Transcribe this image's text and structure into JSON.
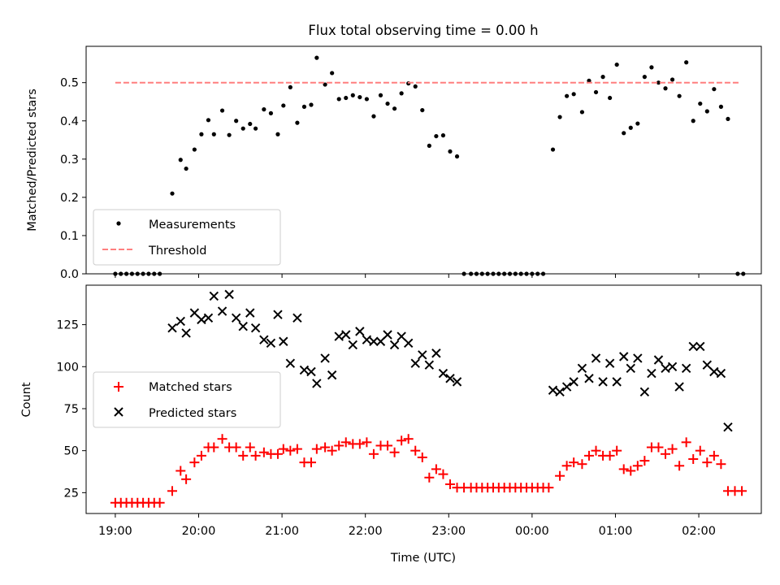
{
  "figure": {
    "title": "Flux total observing time = 0.00 h"
  },
  "chart_data": [
    {
      "type": "scatter",
      "panel": "top",
      "xlabel": "",
      "ylabel": "Matched/Predicted stars",
      "xlim": [
        "18:39",
        "02:45"
      ],
      "ylim": [
        0,
        0.595
      ],
      "x_ticks": [
        "19:00",
        "20:00",
        "21:00",
        "22:00",
        "23:00",
        "00:00",
        "01:00",
        "02:00"
      ],
      "y_ticks": [
        "0.0",
        "0.1",
        "0.2",
        "0.3",
        "0.4",
        "0.5"
      ],
      "legend_position": "lower-left",
      "series": [
        {
          "name": "Measurements",
          "marker": "dot",
          "color": "#000000",
          "points": [
            [
              "19:00",
              0
            ],
            [
              "19:04",
              0
            ],
            [
              "19:08",
              0
            ],
            [
              "19:12",
              0
            ],
            [
              "19:16",
              0
            ],
            [
              "19:20",
              0
            ],
            [
              "19:24",
              0
            ],
            [
              "19:28",
              0
            ],
            [
              "19:32",
              0
            ],
            [
              "19:41",
              0.21
            ],
            [
              "19:47",
              0.298
            ],
            [
              "19:51",
              0.275
            ],
            [
              "19:57",
              0.325
            ],
            [
              "20:02",
              0.365
            ],
            [
              "20:07",
              0.402
            ],
            [
              "20:11",
              0.365
            ],
            [
              "20:17",
              0.427
            ],
            [
              "20:22",
              0.363
            ],
            [
              "20:27",
              0.4
            ],
            [
              "20:32",
              0.38
            ],
            [
              "20:37",
              0.392
            ],
            [
              "20:41",
              0.38
            ],
            [
              "20:47",
              0.43
            ],
            [
              "20:52",
              0.42
            ],
            [
              "20:57",
              0.365
            ],
            [
              "21:01",
              0.44
            ],
            [
              "21:06",
              0.488
            ],
            [
              "21:11",
              0.395
            ],
            [
              "21:16",
              0.437
            ],
            [
              "21:21",
              0.442
            ],
            [
              "21:25",
              0.565
            ],
            [
              "21:31",
              0.495
            ],
            [
              "21:36",
              0.525
            ],
            [
              "21:41",
              0.457
            ],
            [
              "21:46",
              0.46
            ],
            [
              "21:51",
              0.467
            ],
            [
              "21:56",
              0.462
            ],
            [
              "22:01",
              0.457
            ],
            [
              "22:06",
              0.412
            ],
            [
              "22:11",
              0.467
            ],
            [
              "22:16",
              0.445
            ],
            [
              "22:21",
              0.432
            ],
            [
              "22:26",
              0.472
            ],
            [
              "22:31",
              0.498
            ],
            [
              "22:36",
              0.49
            ],
            [
              "22:41",
              0.428
            ],
            [
              "22:46",
              0.335
            ],
            [
              "22:51",
              0.36
            ],
            [
              "22:56",
              0.362
            ],
            [
              "23:01",
              0.32
            ],
            [
              "23:06",
              0.307
            ],
            [
              "23:11",
              0
            ],
            [
              "23:16",
              0
            ],
            [
              "23:20",
              0
            ],
            [
              "23:24",
              0
            ],
            [
              "23:28",
              0
            ],
            [
              "23:32",
              0
            ],
            [
              "23:36",
              0
            ],
            [
              "23:40",
              0
            ],
            [
              "23:44",
              0
            ],
            [
              "23:48",
              0
            ],
            [
              "23:52",
              0
            ],
            [
              "23:56",
              0
            ],
            [
              "00:00",
              0
            ],
            [
              "00:04",
              0
            ],
            [
              "00:08",
              0
            ],
            [
              "00:15",
              0.325
            ],
            [
              "00:20",
              0.41
            ],
            [
              "00:25",
              0.465
            ],
            [
              "00:30",
              0.47
            ],
            [
              "00:36",
              0.423
            ],
            [
              "00:41",
              0.505
            ],
            [
              "00:46",
              0.475
            ],
            [
              "00:51",
              0.515
            ],
            [
              "00:56",
              0.46
            ],
            [
              "01:01",
              0.547
            ],
            [
              "01:06",
              0.368
            ],
            [
              "01:11",
              0.382
            ],
            [
              "01:16",
              0.393
            ],
            [
              "01:21",
              0.515
            ],
            [
              "01:26",
              0.54
            ],
            [
              "01:31",
              0.5
            ],
            [
              "01:36",
              0.485
            ],
            [
              "01:41",
              0.508
            ],
            [
              "01:46",
              0.465
            ],
            [
              "01:51",
              0.553
            ],
            [
              "01:56",
              0.4
            ],
            [
              "02:01",
              0.445
            ],
            [
              "02:06",
              0.425
            ],
            [
              "02:11",
              0.483
            ],
            [
              "02:16",
              0.437
            ],
            [
              "02:21",
              0.405
            ],
            [
              "02:28",
              0
            ],
            [
              "02:32",
              0
            ]
          ]
        },
        {
          "name": "Threshold",
          "marker": "dashed-line",
          "color": "#ff7f7f",
          "points": [
            [
              "19:00",
              0.5
            ],
            [
              "02:30",
              0.5
            ]
          ]
        }
      ]
    },
    {
      "type": "scatter",
      "panel": "bottom",
      "xlabel": "Time (UTC)",
      "ylabel": "Count",
      "xlim": [
        "18:39",
        "02:45"
      ],
      "ylim": [
        12.6,
        148.5
      ],
      "x_ticks": [
        "19:00",
        "20:00",
        "21:00",
        "22:00",
        "23:00",
        "00:00",
        "01:00",
        "02:00"
      ],
      "y_ticks": [
        "25",
        "50",
        "75",
        "100",
        "125"
      ],
      "legend_position": "center-left",
      "series": [
        {
          "name": "Matched stars",
          "marker": "plus",
          "color": "#ff0000",
          "points": [
            [
              "19:00",
              19
            ],
            [
              "19:04",
              19
            ],
            [
              "19:08",
              19
            ],
            [
              "19:12",
              19
            ],
            [
              "19:16",
              19
            ],
            [
              "19:20",
              19
            ],
            [
              "19:24",
              19
            ],
            [
              "19:28",
              19
            ],
            [
              "19:32",
              19
            ],
            [
              "19:41",
              26
            ],
            [
              "19:47",
              38
            ],
            [
              "19:51",
              33
            ],
            [
              "19:57",
              43
            ],
            [
              "20:02",
              47
            ],
            [
              "20:07",
              52
            ],
            [
              "20:11",
              52
            ],
            [
              "20:17",
              57
            ],
            [
              "20:22",
              52
            ],
            [
              "20:27",
              52
            ],
            [
              "20:32",
              47
            ],
            [
              "20:37",
              52
            ],
            [
              "20:41",
              47
            ],
            [
              "20:47",
              49
            ],
            [
              "20:52",
              48
            ],
            [
              "20:57",
              48
            ],
            [
              "21:01",
              51
            ],
            [
              "21:06",
              50
            ],
            [
              "21:11",
              51
            ],
            [
              "21:16",
              43
            ],
            [
              "21:21",
              43
            ],
            [
              "21:25",
              51
            ],
            [
              "21:31",
              52
            ],
            [
              "21:36",
              50
            ],
            [
              "21:41",
              53
            ],
            [
              "21:46",
              55
            ],
            [
              "21:51",
              54
            ],
            [
              "21:56",
              54
            ],
            [
              "22:01",
              55
            ],
            [
              "22:06",
              48
            ],
            [
              "22:11",
              53
            ],
            [
              "22:16",
              53
            ],
            [
              "22:21",
              49
            ],
            [
              "22:26",
              56
            ],
            [
              "22:31",
              57
            ],
            [
              "22:36",
              50
            ],
            [
              "22:41",
              46
            ],
            [
              "22:46",
              34
            ],
            [
              "22:51",
              39
            ],
            [
              "22:56",
              36
            ],
            [
              "23:01",
              30
            ],
            [
              "23:06",
              28
            ],
            [
              "23:11",
              28
            ],
            [
              "23:16",
              28
            ],
            [
              "23:20",
              28
            ],
            [
              "23:24",
              28
            ],
            [
              "23:28",
              28
            ],
            [
              "23:32",
              28
            ],
            [
              "23:36",
              28
            ],
            [
              "23:40",
              28
            ],
            [
              "23:44",
              28
            ],
            [
              "23:48",
              28
            ],
            [
              "23:52",
              28
            ],
            [
              "23:56",
              28
            ],
            [
              "00:00",
              28
            ],
            [
              "00:04",
              28
            ],
            [
              "00:08",
              28
            ],
            [
              "00:12",
              28
            ],
            [
              "00:20",
              35
            ],
            [
              "00:25",
              41
            ],
            [
              "00:30",
              43
            ],
            [
              "00:36",
              42
            ],
            [
              "00:41",
              47
            ],
            [
              "00:46",
              50
            ],
            [
              "00:51",
              47
            ],
            [
              "00:56",
              47
            ],
            [
              "01:01",
              50
            ],
            [
              "01:06",
              39
            ],
            [
              "01:11",
              38
            ],
            [
              "01:16",
              41
            ],
            [
              "01:21",
              44
            ],
            [
              "01:26",
              52
            ],
            [
              "01:31",
              52
            ],
            [
              "01:36",
              48
            ],
            [
              "01:41",
              51
            ],
            [
              "01:46",
              41
            ],
            [
              "01:51",
              55
            ],
            [
              "01:56",
              45
            ],
            [
              "02:01",
              50
            ],
            [
              "02:06",
              43
            ],
            [
              "02:11",
              47
            ],
            [
              "02:16",
              42
            ],
            [
              "02:21",
              26
            ],
            [
              "02:26",
              26
            ],
            [
              "02:31",
              26
            ]
          ]
        },
        {
          "name": "Predicted stars",
          "marker": "x",
          "color": "#000000",
          "points": [
            [
              "19:41",
              123
            ],
            [
              "19:47",
              127
            ],
            [
              "19:51",
              120
            ],
            [
              "19:57",
              132
            ],
            [
              "20:02",
              128
            ],
            [
              "20:07",
              129
            ],
            [
              "20:11",
              142
            ],
            [
              "20:17",
              133
            ],
            [
              "20:22",
              143
            ],
            [
              "20:27",
              129
            ],
            [
              "20:32",
              124
            ],
            [
              "20:37",
              132
            ],
            [
              "20:41",
              123
            ],
            [
              "20:47",
              116
            ],
            [
              "20:52",
              114
            ],
            [
              "20:57",
              131
            ],
            [
              "21:01",
              115
            ],
            [
              "21:06",
              102
            ],
            [
              "21:11",
              129
            ],
            [
              "21:16",
              98
            ],
            [
              "21:21",
              97
            ],
            [
              "21:25",
              90
            ],
            [
              "21:31",
              105
            ],
            [
              "21:36",
              95
            ],
            [
              "21:41",
              118
            ],
            [
              "21:46",
              119
            ],
            [
              "21:51",
              113
            ],
            [
              "21:56",
              121
            ],
            [
              "22:01",
              116
            ],
            [
              "22:06",
              115
            ],
            [
              "22:11",
              115
            ],
            [
              "22:16",
              119
            ],
            [
              "22:21",
              113
            ],
            [
              "22:26",
              118
            ],
            [
              "22:31",
              114
            ],
            [
              "22:36",
              102
            ],
            [
              "22:41",
              107
            ],
            [
              "22:46",
              101
            ],
            [
              "22:51",
              108
            ],
            [
              "22:56",
              96
            ],
            [
              "23:01",
              93
            ],
            [
              "23:06",
              91
            ],
            [
              "00:15",
              86
            ],
            [
              "00:20",
              85
            ],
            [
              "00:25",
              88
            ],
            [
              "00:30",
              91
            ],
            [
              "00:36",
              99
            ],
            [
              "00:41",
              93
            ],
            [
              "00:46",
              105
            ],
            [
              "00:51",
              91
            ],
            [
              "00:56",
              102
            ],
            [
              "01:01",
              91
            ],
            [
              "01:06",
              106
            ],
            [
              "01:11",
              99
            ],
            [
              "01:16",
              105
            ],
            [
              "01:21",
              85
            ],
            [
              "01:26",
              96
            ],
            [
              "01:31",
              104
            ],
            [
              "01:36",
              99
            ],
            [
              "01:41",
              100
            ],
            [
              "01:46",
              88
            ],
            [
              "01:51",
              99
            ],
            [
              "01:56",
              112
            ],
            [
              "02:01",
              112
            ],
            [
              "02:06",
              101
            ],
            [
              "02:11",
              97
            ],
            [
              "02:16",
              96
            ],
            [
              "02:21",
              64
            ]
          ]
        }
      ]
    }
  ]
}
